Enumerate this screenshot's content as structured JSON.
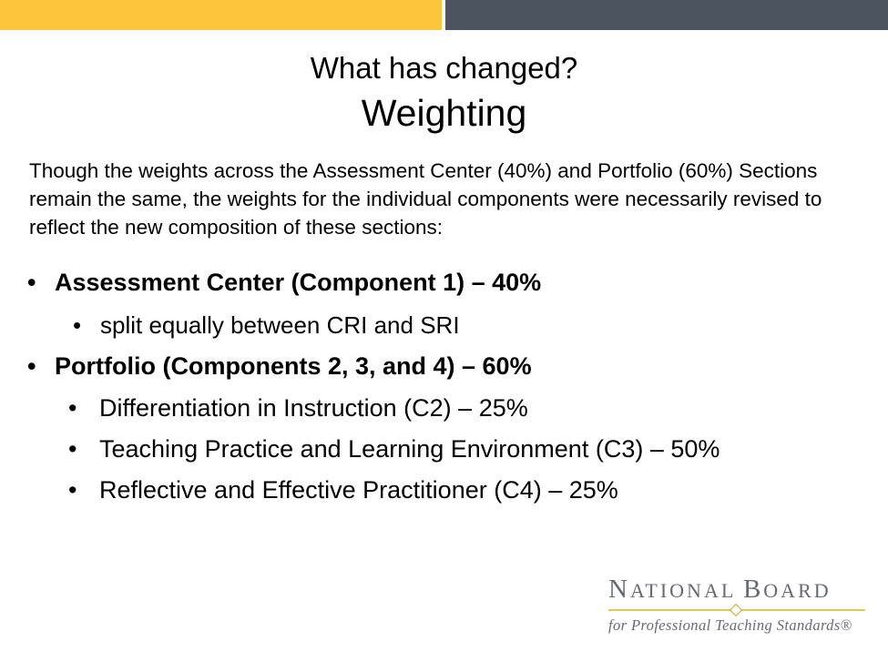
{
  "slide": {
    "title_line1": "What has changed?",
    "title_line2": "Weighting",
    "intro": "Though the weights across the Assessment Center (40%) and Portfolio (60%) Sections remain the same, the weights for the individual components were necessarily revised to reflect the new composition of these sections:",
    "bullets": [
      {
        "text": "Assessment Center (Component 1) – 40%",
        "sub": [
          "split equally between CRI and SRI"
        ]
      },
      {
        "text": "Portfolio (Components 2, 3, and 4) – 60%",
        "sub": [
          "Differentiation in Instruction (C2) – 25%",
          "Teaching Practice and Learning Environment (C3) – 50%",
          "Reflective and Effective Practitioner (C4) – 25%"
        ]
      }
    ],
    "bullet_glyph": "•"
  },
  "logo": {
    "n": "N",
    "ational": "ATIONAL",
    "b": "B",
    "oard": "OARD",
    "tagline": "for Professional Teaching Standards®"
  },
  "colors": {
    "yellow_bar": "#fcc63c",
    "gray_bar": "#4b5560",
    "logo_text": "#666a70",
    "logo_rule": "#e0c95a"
  }
}
